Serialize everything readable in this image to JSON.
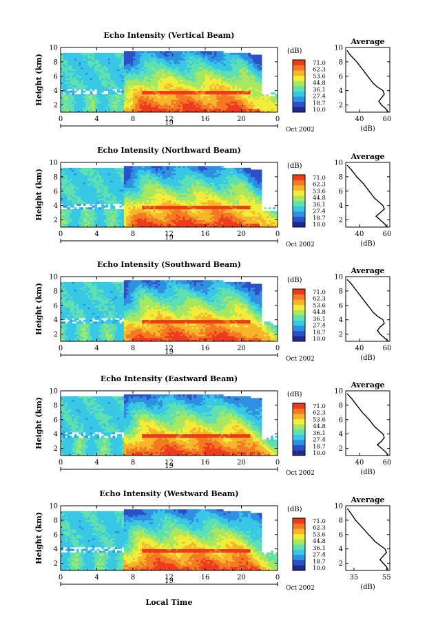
{
  "chart_data": [
    {
      "type": "heatmap",
      "title": "Echo Intensity (Vertical Beam)",
      "ylabel": "Height (km)",
      "xticks": [
        "0",
        "4",
        "8",
        "12",
        "16",
        "20",
        "0"
      ],
      "yticks": [
        "2",
        "4",
        "6",
        "8",
        "10"
      ],
      "xlim": [
        0,
        24
      ],
      "ylim": [
        1,
        10
      ],
      "date_label": "19",
      "month_label": "Oct 2002",
      "colorbar_unit": "(dB)",
      "colorbar_ticks": [
        "71.0",
        "62.3",
        "53.6",
        "44.8",
        "36.1",
        "27.4",
        "18.7",
        "10.0"
      ],
      "avg_title": "Average",
      "avg_xlabel": "(dB)",
      "avg_xticks": [
        "40",
        "60"
      ],
      "avg_xlim": [
        30,
        62
      ],
      "avg_profile": {
        "height": [
          1.0,
          1.5,
          2.0,
          2.5,
          3.0,
          3.5,
          4.0,
          4.5,
          5.0,
          6.0,
          7.0,
          8.0,
          9.0,
          9.6
        ],
        "value": [
          61,
          59,
          56,
          54,
          56,
          58,
          57,
          53,
          50,
          46,
          42,
          38,
          33,
          31
        ]
      }
    },
    {
      "type": "heatmap",
      "title": "Echo Intensity (Northward Beam)",
      "ylabel": "Height (km)",
      "xticks": [
        "0",
        "4",
        "8",
        "12",
        "16",
        "20",
        "0"
      ],
      "yticks": [
        "2",
        "4",
        "6",
        "8",
        "10"
      ],
      "xlim": [
        0,
        24
      ],
      "ylim": [
        1,
        10
      ],
      "date_label": "19",
      "month_label": "Oct 2002",
      "colorbar_unit": "(dB)",
      "colorbar_ticks": [
        "71.0",
        "62.3",
        "53.6",
        "44.8",
        "36.1",
        "27.4",
        "18.7",
        "10.0"
      ],
      "avg_title": "Average",
      "avg_xlabel": "(dB)",
      "avg_xticks": [
        "40",
        "60"
      ],
      "avg_xlim": [
        30,
        62
      ],
      "avg_profile": {
        "height": [
          1.0,
          1.5,
          2.0,
          2.5,
          3.0,
          3.5,
          4.0,
          4.5,
          5.0,
          6.0,
          7.0,
          8.0,
          9.0,
          9.6
        ],
        "value": [
          60,
          58,
          55,
          52,
          55,
          58,
          57,
          54,
          51,
          47,
          43,
          38,
          34,
          31
        ]
      }
    },
    {
      "type": "heatmap",
      "title": "Echo Intensity (Southward Beam)",
      "ylabel": "Height (km)",
      "xticks": [
        "0",
        "4",
        "8",
        "12",
        "16",
        "20",
        "0"
      ],
      "yticks": [
        "2",
        "4",
        "6",
        "8",
        "10"
      ],
      "xlim": [
        0,
        24
      ],
      "ylim": [
        1,
        10
      ],
      "date_label": "19",
      "month_label": "Oct 2002",
      "colorbar_unit": "(dB)",
      "colorbar_ticks": [
        "71.0",
        "62.3",
        "53.6",
        "44.8",
        "36.1",
        "27.4",
        "18.7",
        "10.0"
      ],
      "avg_title": "Average",
      "avg_xlabel": "(dB)",
      "avg_xticks": [
        "40",
        "60"
      ],
      "avg_xlim": [
        30,
        62
      ],
      "avg_profile": {
        "height": [
          1.0,
          1.5,
          2.0,
          2.5,
          3.0,
          3.5,
          4.0,
          4.5,
          5.0,
          6.0,
          7.0,
          8.0,
          9.0,
          9.6
        ],
        "value": [
          61,
          58,
          55,
          53,
          55,
          58,
          57,
          53,
          50,
          46,
          42,
          38,
          34,
          31
        ]
      }
    },
    {
      "type": "heatmap",
      "title": "Echo Intensity (Eastward Beam)",
      "ylabel": "Height (km)",
      "xticks": [
        "0",
        "4",
        "8",
        "12",
        "16",
        "20",
        "0"
      ],
      "yticks": [
        "2",
        "4",
        "6",
        "8",
        "10"
      ],
      "xlim": [
        0,
        24
      ],
      "ylim": [
        1,
        10
      ],
      "date_label": "19",
      "month_label": "Oct 2002",
      "colorbar_unit": "(dB)",
      "colorbar_ticks": [
        "71.0",
        "62.3",
        "53.6",
        "44.8",
        "36.1",
        "27.4",
        "18.7",
        "10.0"
      ],
      "avg_title": "Average",
      "avg_xlabel": "(dB)",
      "avg_xticks": [
        "40",
        "60"
      ],
      "avg_xlim": [
        30,
        62
      ],
      "avg_profile": {
        "height": [
          1.0,
          1.5,
          2.0,
          2.5,
          3.0,
          3.5,
          4.0,
          4.5,
          5.0,
          6.0,
          7.0,
          8.0,
          9.0,
          9.6
        ],
        "value": [
          61,
          59,
          56,
          53,
          56,
          58,
          57,
          54,
          51,
          47,
          42,
          38,
          34,
          31
        ]
      }
    },
    {
      "type": "heatmap",
      "title": "Echo Intensity (Westward Beam)",
      "ylabel": "Height (km)",
      "xticks": [
        "0",
        "4",
        "8",
        "12",
        "16",
        "20",
        "0"
      ],
      "yticks": [
        "2",
        "4",
        "6",
        "8",
        "10"
      ],
      "xlim": [
        0,
        24
      ],
      "ylim": [
        1,
        10
      ],
      "date_label": "19",
      "month_label": "Oct 2002",
      "colorbar_unit": "(dB)",
      "colorbar_ticks": [
        "71.0",
        "62.3",
        "53.6",
        "44.8",
        "36.1",
        "27.4",
        "18.7",
        "10.0"
      ],
      "avg_title": "Average",
      "avg_xlabel": "(dB)",
      "avg_xticks": [
        "35",
        "55"
      ],
      "avg_xlim": [
        30,
        57
      ],
      "avg_profile": {
        "height": [
          1.0,
          1.5,
          2.0,
          2.5,
          3.0,
          3.5,
          4.0,
          4.5,
          5.0,
          6.0,
          7.0,
          8.0,
          9.0,
          9.6
        ],
        "value": [
          56,
          55,
          53,
          51,
          53,
          55,
          54,
          51,
          48,
          44,
          40,
          36,
          33,
          31
        ]
      }
    }
  ],
  "xlabel": "Local Time",
  "colorscale": [
    "#1f2a8c",
    "#2b50c8",
    "#2f8fe0",
    "#38c8e6",
    "#5fe0b0",
    "#a8e860",
    "#f2ec3a",
    "#f7b52c",
    "#f37a22",
    "#ee3b1e"
  ]
}
